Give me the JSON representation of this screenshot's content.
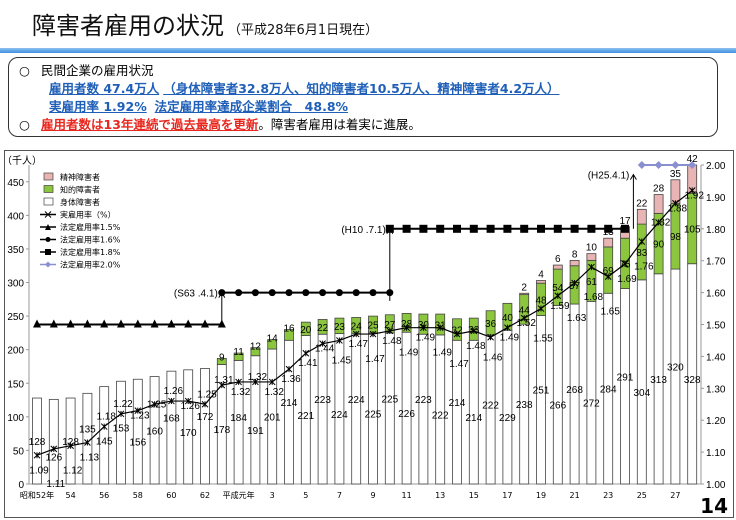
{
  "title": "障害者雇用の状況",
  "subtitle": "（平成28年6月1日現在）",
  "summary": {
    "heading": "民間企業の雇用状況",
    "line1": "雇用者数 47.4万人",
    "line1b": "（身体障害者32.8万人、知的障害者10.5万人、精神障害者4.2万人）",
    "line2": "実雇用率 1.92%",
    "line2b": "法定雇用率達成企業割合　48.8%",
    "line3_red": "雇用者数は13年連続で過去最高を更新",
    "line3_rest": "。障害者雇用は着実に進展。",
    "bullet": "○"
  },
  "page_number": "14",
  "chart_data": {
    "type": "bar",
    "stacked": true,
    "ylabel": "（千人）",
    "ylim": [
      0,
      475
    ],
    "y2lim": [
      1.0,
      2.0
    ],
    "yticks": [
      "0",
      "50",
      "100",
      "150",
      "200",
      "250",
      "300",
      "350",
      "400",
      "450"
    ],
    "y2ticks": [
      "1.00",
      "1.10",
      "1.20",
      "1.30",
      "1.40",
      "1.50",
      "1.60",
      "1.70",
      "1.80",
      "1.90",
      "2.00"
    ],
    "xticks": [
      "昭和52年",
      "54",
      "56",
      "58",
      "60",
      "62",
      "平成元年",
      "3",
      "5",
      "7",
      "9",
      "11",
      "13",
      "15",
      "17",
      "19",
      "21",
      "23",
      "25",
      "27"
    ],
    "categories": [
      "S52",
      "S53",
      "S54",
      "S55",
      "S56",
      "S57",
      "S58",
      "S59",
      "S60",
      "S61",
      "S62",
      "S63",
      "H1",
      "H2",
      "H3",
      "H4",
      "H5",
      "H6",
      "H7",
      "H8",
      "H9",
      "H10",
      "H11",
      "H12",
      "H13",
      "H14",
      "H15",
      "H16",
      "H17",
      "H18",
      "H19",
      "H20",
      "H21",
      "H22",
      "H23",
      "H24",
      "H25",
      "H26",
      "H27",
      "H28"
    ],
    "series": [
      {
        "name": "身体障害者",
        "color": "#ffffff",
        "values": [
          128,
          126,
          128,
          135,
          145,
          153,
          156,
          160,
          168,
          170,
          172,
          178,
          184,
          191,
          201,
          214,
          221,
          223,
          224,
          224,
          225,
          225,
          226,
          223,
          222,
          214,
          214,
          222,
          229,
          238,
          251,
          266,
          268,
          272,
          284,
          291,
          304,
          313,
          320,
          328
        ]
      },
      {
        "name": "知的障害者",
        "color": "#8cc63f",
        "values": [
          null,
          null,
          null,
          null,
          null,
          null,
          null,
          null,
          null,
          null,
          null,
          9,
          11,
          12,
          14,
          16,
          20,
          22,
          23,
          24,
          25,
          27,
          28,
          30,
          31,
          32,
          33,
          36,
          40,
          44,
          48,
          54,
          57,
          61,
          69,
          75,
          83,
          90,
          98,
          105
        ]
      },
      {
        "name": "精神障害者",
        "color": "#e8b4b4",
        "values": [
          null,
          null,
          null,
          null,
          null,
          null,
          null,
          null,
          null,
          null,
          null,
          null,
          null,
          null,
          null,
          null,
          null,
          null,
          null,
          null,
          null,
          null,
          null,
          null,
          null,
          null,
          null,
          null,
          null,
          2,
          4,
          6,
          8,
          10,
          13,
          17,
          22,
          28,
          35,
          42
        ]
      }
    ],
    "rate": {
      "name": "実雇用率（%）",
      "values": [
        1.09,
        1.11,
        1.12,
        1.13,
        1.18,
        1.22,
        1.23,
        1.25,
        1.26,
        1.26,
        1.25,
        1.31,
        1.32,
        1.32,
        1.32,
        1.36,
        1.41,
        1.44,
        1.45,
        1.47,
        1.47,
        1.48,
        1.49,
        1.49,
        1.49,
        1.47,
        1.48,
        1.46,
        1.49,
        1.52,
        1.55,
        1.59,
        1.63,
        1.68,
        1.65,
        1.69,
        1.76,
        1.82,
        1.88,
        1.92
      ]
    },
    "legal_rates": [
      {
        "name": "法定雇用率1.5%",
        "value": 1.5,
        "from": 0,
        "to": 11,
        "marker": "triangle",
        "color": "#000000"
      },
      {
        "name": "法定雇用率1.6%",
        "value": 1.6,
        "from": 11,
        "to": 21,
        "marker": "circle",
        "color": "#000000"
      },
      {
        "name": "法定雇用率1.8%",
        "value": 1.8,
        "from": 21,
        "to": 35,
        "marker": "square",
        "color": "#000000"
      },
      {
        "name": "法定雇用率2.0%",
        "value": 2.0,
        "from": 36,
        "to": 39,
        "marker": "diamond",
        "color": "#8a8fd0"
      }
    ],
    "annotations": [
      {
        "text": "(S63 .4.1)",
        "at": 11
      },
      {
        "text": "(H10 .7.1)",
        "at": 21
      },
      {
        "text": "(H25.4.1)",
        "at": 35.5
      }
    ],
    "legend_position": "top-left"
  }
}
